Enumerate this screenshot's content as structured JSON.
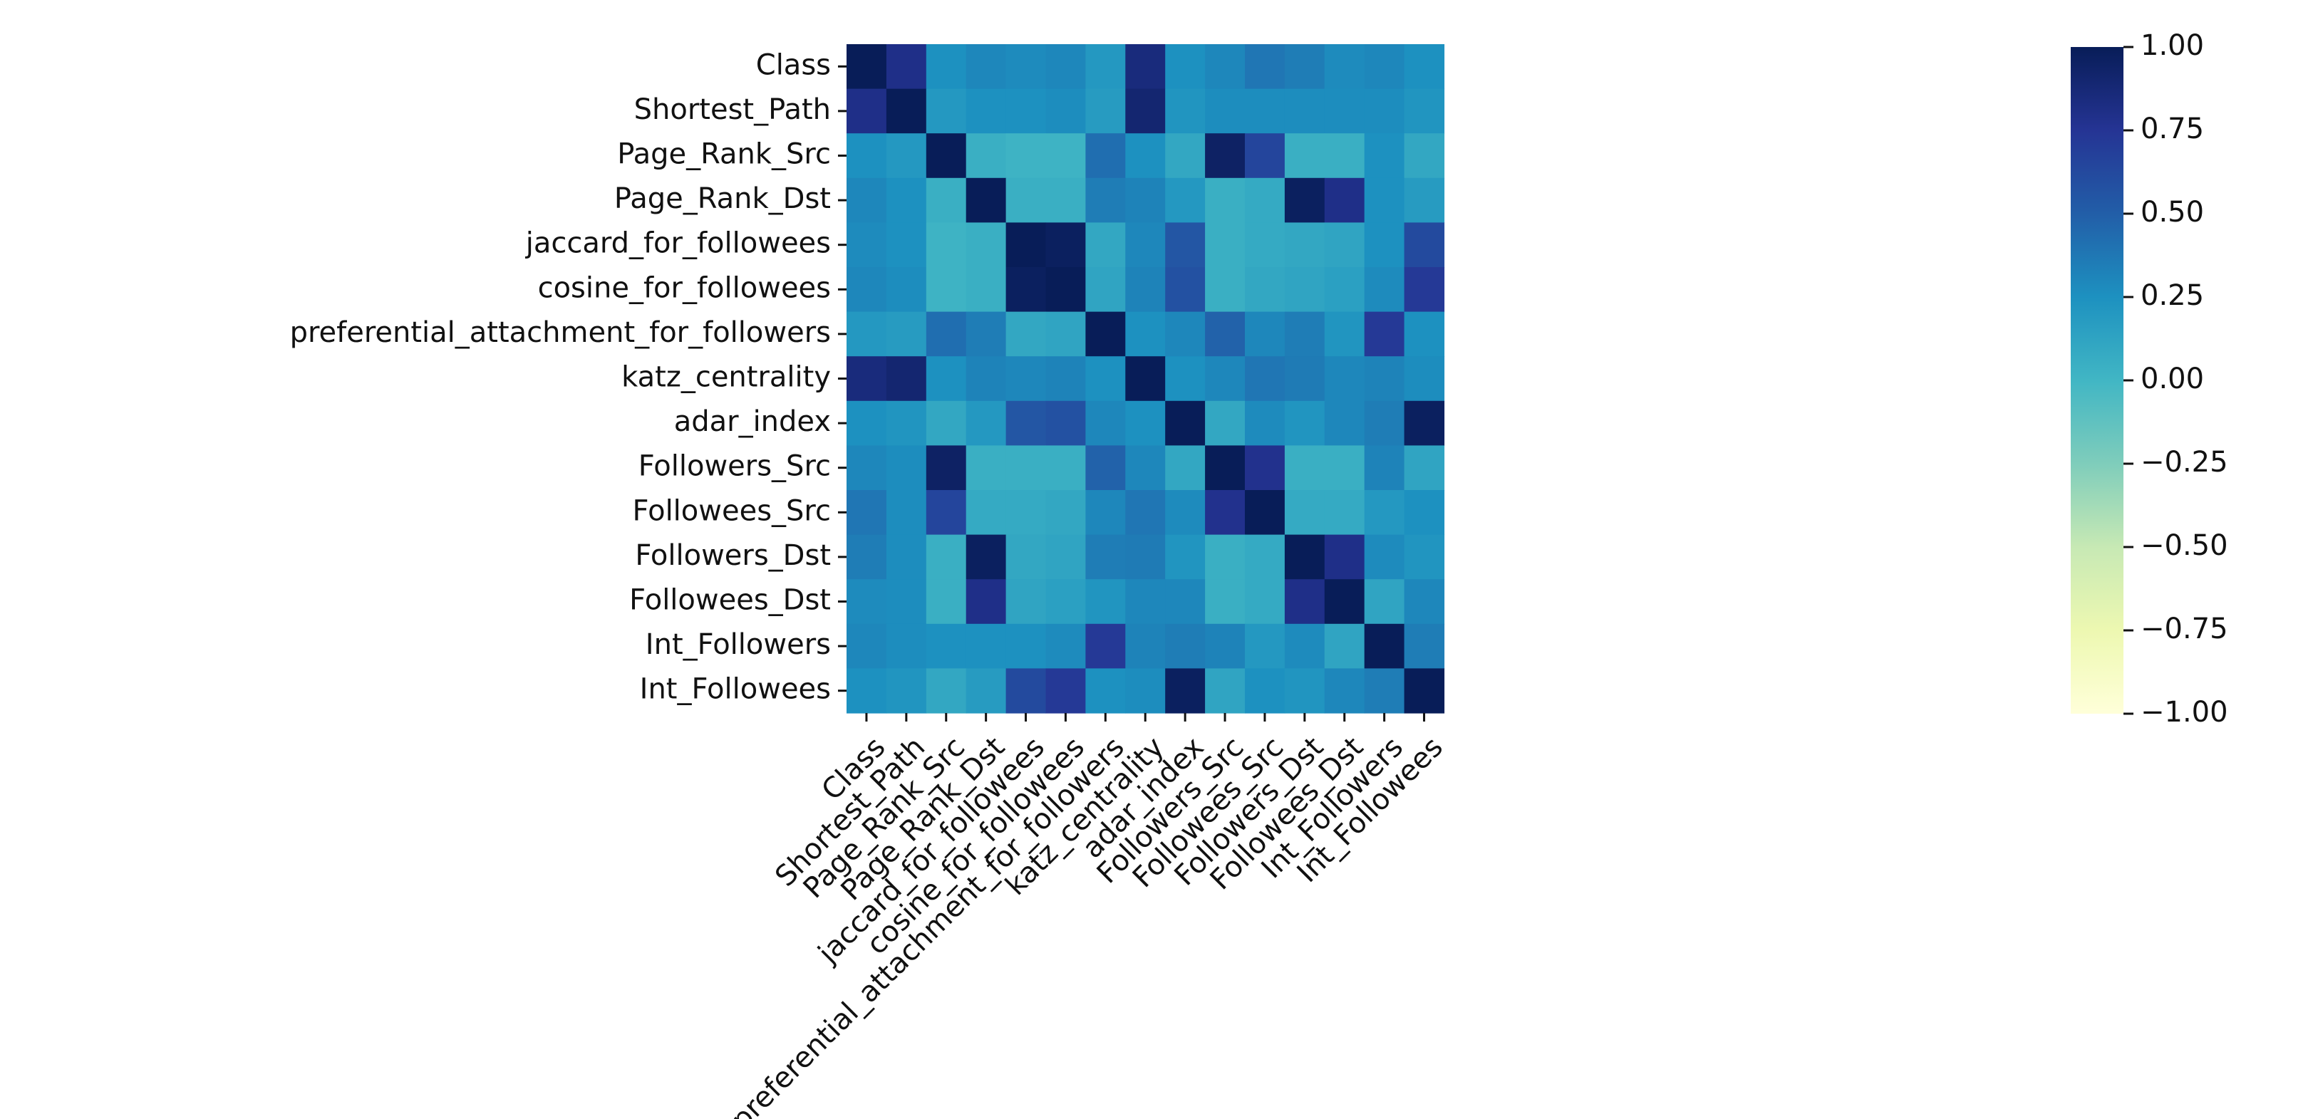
{
  "chart_data": {
    "type": "heatmap",
    "title": "",
    "xlabel": "",
    "ylabel": "",
    "labels": [
      "Class",
      "Shortest_Path",
      "Page_Rank_Src",
      "Page_Rank_Dst",
      "jaccard_for_followees",
      "cosine_for_followees",
      "preferential_attachment_for_followers",
      "katz_centrality",
      "adar_index",
      "Followers_Src",
      "Followees_Src",
      "Followers_Dst",
      "Followees_Dst",
      "Int_Followers",
      "Int_Followees"
    ],
    "values": [
      [
        1.0,
        0.8,
        0.25,
        0.3,
        0.28,
        0.3,
        0.2,
        0.85,
        0.25,
        0.3,
        0.38,
        0.35,
        0.28,
        0.3,
        0.25
      ],
      [
        0.8,
        1.0,
        0.2,
        0.25,
        0.25,
        0.27,
        0.18,
        0.9,
        0.22,
        0.27,
        0.27,
        0.27,
        0.27,
        0.27,
        0.22
      ],
      [
        0.25,
        0.2,
        1.0,
        0.05,
        0.02,
        0.02,
        0.42,
        0.25,
        0.1,
        0.95,
        0.65,
        0.05,
        0.05,
        0.25,
        0.1
      ],
      [
        0.3,
        0.25,
        0.05,
        1.0,
        0.05,
        0.05,
        0.35,
        0.32,
        0.2,
        0.05,
        0.08,
        0.97,
        0.8,
        0.25,
        0.18
      ],
      [
        0.28,
        0.25,
        0.02,
        0.05,
        1.0,
        0.97,
        0.1,
        0.3,
        0.55,
        0.05,
        0.08,
        0.1,
        0.12,
        0.25,
        0.62
      ],
      [
        0.3,
        0.27,
        0.02,
        0.05,
        0.97,
        1.0,
        0.12,
        0.32,
        0.58,
        0.05,
        0.1,
        0.12,
        0.15,
        0.28,
        0.72
      ],
      [
        0.2,
        0.18,
        0.42,
        0.35,
        0.1,
        0.12,
        1.0,
        0.25,
        0.3,
        0.48,
        0.3,
        0.35,
        0.22,
        0.72,
        0.25
      ],
      [
        0.85,
        0.9,
        0.25,
        0.32,
        0.3,
        0.32,
        0.25,
        1.0,
        0.25,
        0.3,
        0.38,
        0.36,
        0.3,
        0.32,
        0.27
      ],
      [
        0.25,
        0.22,
        0.1,
        0.2,
        0.55,
        0.58,
        0.3,
        0.25,
        1.0,
        0.1,
        0.28,
        0.22,
        0.3,
        0.35,
        0.97
      ],
      [
        0.3,
        0.27,
        0.95,
        0.05,
        0.05,
        0.05,
        0.48,
        0.3,
        0.1,
        1.0,
        0.78,
        0.05,
        0.05,
        0.32,
        0.12
      ],
      [
        0.38,
        0.27,
        0.65,
        0.08,
        0.08,
        0.1,
        0.3,
        0.38,
        0.28,
        0.78,
        1.0,
        0.08,
        0.08,
        0.2,
        0.25
      ],
      [
        0.35,
        0.27,
        0.05,
        0.97,
        0.1,
        0.12,
        0.35,
        0.36,
        0.22,
        0.05,
        0.08,
        1.0,
        0.8,
        0.28,
        0.22
      ],
      [
        0.28,
        0.27,
        0.05,
        0.8,
        0.12,
        0.15,
        0.22,
        0.3,
        0.3,
        0.05,
        0.08,
        0.8,
        1.0,
        0.12,
        0.3
      ],
      [
        0.3,
        0.27,
        0.25,
        0.25,
        0.25,
        0.28,
        0.72,
        0.32,
        0.35,
        0.32,
        0.2,
        0.28,
        0.12,
        1.0,
        0.35
      ],
      [
        0.25,
        0.22,
        0.1,
        0.18,
        0.62,
        0.72,
        0.25,
        0.27,
        0.97,
        0.12,
        0.25,
        0.22,
        0.3,
        0.35,
        1.0
      ]
    ],
    "colormap": "YlGnBu",
    "vmin": -1.0,
    "vmax": 1.0,
    "colorbar_ticks": [
      "1.00",
      "0.75",
      "0.50",
      "0.25",
      "0.00",
      "−0.25",
      "−0.50",
      "−0.75",
      "−1.00"
    ],
    "colorbar_tick_values": [
      1.0,
      0.75,
      0.5,
      0.25,
      0.0,
      -0.25,
      -0.5,
      -0.75,
      -1.0
    ],
    "colorbar_stops": [
      "#ffffd9",
      "#edf8b1",
      "#c7e9b4",
      "#7fcdbb",
      "#41b6c4",
      "#1d91c0",
      "#225ea8",
      "#253494",
      "#081d58"
    ],
    "grid": false,
    "legend": "colorbar-right"
  }
}
